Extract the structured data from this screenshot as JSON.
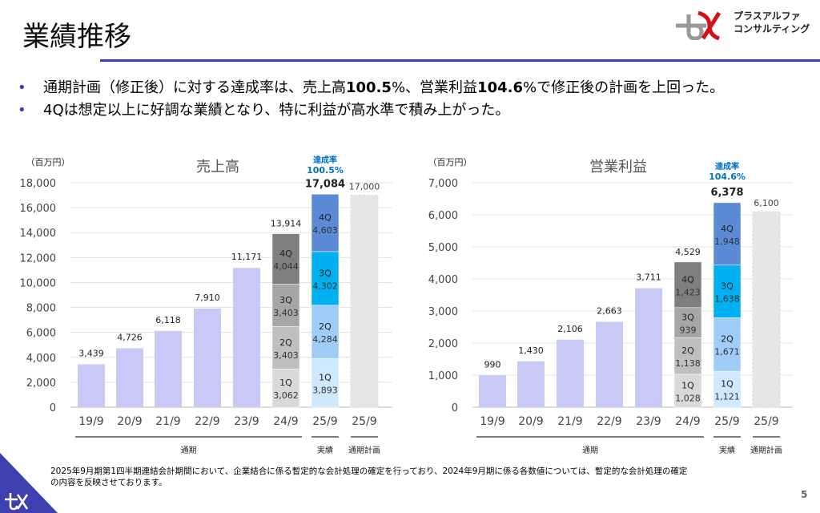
{
  "header": {
    "title": "業績推移",
    "logo_text_line1": "プラスアルファ",
    "logo_text_line2": "コンサルティング"
  },
  "bullets": [
    {
      "pre": "通期計画（修正後）に対する達成率は、売上高",
      "b1": "100.5",
      "mid": "%、営業利益",
      "b2": "104.6",
      "post": "%で修正後の計画を上回った。"
    },
    {
      "text": "4Qは想定以上に好調な業績となり、特に利益が高水準で積み上がった。"
    }
  ],
  "colors": {
    "annual": "#c9c9f7",
    "q24": [
      "#d9d9d9",
      "#bfbfbf",
      "#a6a6a6",
      "#7f7f7f"
    ],
    "q25": [
      "#cfe9ff",
      "#9fcdf8",
      "#00b0f0",
      "#5b8bd6"
    ],
    "plan": "#e6e6e6",
    "accent": "#0070c0",
    "rule": "#3a3ac0"
  },
  "chart_data": [
    {
      "type": "bar",
      "title": "売上高",
      "unit": "（百万円）",
      "ylim": [
        0,
        18000
      ],
      "yticks": [
        0,
        2000,
        4000,
        6000,
        8000,
        10000,
        12000,
        14000,
        16000,
        18000
      ],
      "grid": true,
      "categories": [
        "19/9",
        "20/9",
        "21/9",
        "22/9",
        "23/9",
        "24/9",
        "25/9",
        "25/9"
      ],
      "annual_values": [
        3439,
        4726,
        6118,
        7910,
        11171
      ],
      "annual_labels": [
        "3,439",
        "4,726",
        "6,118",
        "7,910",
        "11,171"
      ],
      "fy24": {
        "total": "13,914",
        "quarters": [
          "1Q",
          "2Q",
          "3Q",
          "4Q"
        ],
        "values": [
          3062,
          3403,
          3403,
          4044
        ],
        "labels": [
          "3,062",
          "3,403",
          "3,403",
          "4,044"
        ]
      },
      "fy25": {
        "total": "17,084",
        "quarters": [
          "1Q",
          "2Q",
          "3Q",
          "4Q"
        ],
        "values": [
          3893,
          4284,
          4302,
          4603
        ],
        "labels": [
          "3,893",
          "4,284",
          "4,302",
          "4,603"
        ]
      },
      "plan": {
        "value": 17000,
        "label": "17,000"
      },
      "achievement_label": "達成率",
      "achievement": "100.5%",
      "groups": [
        "通期",
        "実績",
        "通期計画"
      ]
    },
    {
      "type": "bar",
      "title": "営業利益",
      "unit": "（百万円）",
      "ylim": [
        0,
        7000
      ],
      "yticks": [
        0,
        1000,
        2000,
        3000,
        4000,
        5000,
        6000,
        7000
      ],
      "grid": true,
      "categories": [
        "19/9",
        "20/9",
        "21/9",
        "22/9",
        "23/9",
        "24/9",
        "25/9",
        "25/9"
      ],
      "annual_values": [
        990,
        1430,
        2106,
        2663,
        3711
      ],
      "annual_labels": [
        "990",
        "1,430",
        "2,106",
        "2,663",
        "3,711"
      ],
      "fy24": {
        "total": "4,529",
        "quarters": [
          "1Q",
          "2Q",
          "3Q",
          "4Q"
        ],
        "values": [
          1028,
          1138,
          939,
          1423
        ],
        "labels": [
          "1,028",
          "1,138",
          "939",
          "1,423"
        ]
      },
      "fy25": {
        "total": "6,378",
        "quarters": [
          "1Q",
          "2Q",
          "3Q",
          "4Q"
        ],
        "values": [
          1121,
          1671,
          1638,
          1948
        ],
        "labels": [
          "1,121",
          "1,671",
          "1,638",
          "1,948"
        ]
      },
      "plan": {
        "value": 6100,
        "label": "6,100"
      },
      "achievement_label": "達成率",
      "achievement": "104.6%",
      "groups": [
        "通期",
        "実績",
        "通期計画"
      ]
    }
  ],
  "footnote": "2025年9月期第1四半期連結会計期間において、企業結合に係る暫定的な会計処理の確定を行っており、2024年9月期に係る各数値については、暫定的な会計処理の確定の内容を反映させております。",
  "page_number": "5"
}
